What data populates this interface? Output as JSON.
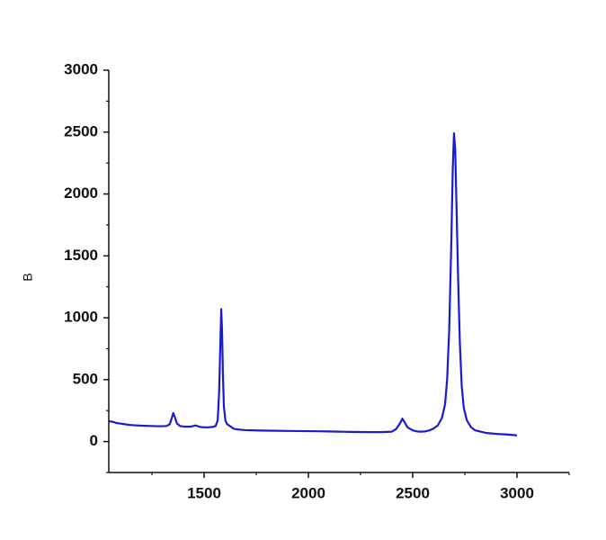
{
  "chart_data": {
    "type": "line",
    "y_label": "B",
    "color": "#1a1ad2",
    "xlim": [
      1043,
      3250
    ],
    "ylim": [
      -250,
      3000
    ],
    "xticks": [
      1500,
      2000,
      2500,
      3000
    ],
    "yticks": [
      0,
      500,
      1000,
      1500,
      2000,
      2500,
      3000
    ],
    "x_minor_ticks": [
      1250,
      1750,
      2250,
      2750,
      3250
    ],
    "y_minor_ticks": [
      -250,
      250,
      750,
      1250,
      1750,
      2250,
      2750
    ],
    "x": [
      1045,
      1060,
      1080,
      1100,
      1120,
      1140,
      1160,
      1180,
      1200,
      1220,
      1240,
      1260,
      1280,
      1300,
      1320,
      1335,
      1345,
      1352,
      1360,
      1370,
      1385,
      1400,
      1420,
      1440,
      1460,
      1480,
      1500,
      1520,
      1540,
      1555,
      1565,
      1572,
      1578,
      1582,
      1586,
      1590,
      1595,
      1602,
      1610,
      1620,
      1640,
      1660,
      1680,
      1700,
      1750,
      1800,
      1850,
      1900,
      1950,
      2000,
      2050,
      2100,
      2150,
      2200,
      2250,
      2300,
      2350,
      2400,
      2420,
      2440,
      2450,
      2460,
      2475,
      2500,
      2520,
      2540,
      2560,
      2580,
      2600,
      2620,
      2640,
      2655,
      2665,
      2675,
      2685,
      2692,
      2698,
      2704,
      2710,
      2718,
      2726,
      2735,
      2745,
      2760,
      2780,
      2800,
      2850,
      2900,
      2950,
      3000
    ],
    "values": [
      165,
      160,
      150,
      145,
      140,
      135,
      132,
      130,
      128,
      127,
      126,
      125,
      124,
      124,
      126,
      140,
      190,
      230,
      195,
      145,
      125,
      122,
      120,
      122,
      130,
      118,
      115,
      115,
      118,
      125,
      170,
      400,
      800,
      1070,
      900,
      550,
      280,
      170,
      140,
      130,
      105,
      98,
      95,
      92,
      90,
      88,
      87,
      86,
      85,
      84,
      83,
      82,
      80,
      78,
      77,
      76,
      76,
      80,
      100,
      150,
      185,
      160,
      115,
      90,
      82,
      80,
      82,
      90,
      105,
      130,
      190,
      300,
      500,
      900,
      1600,
      2200,
      2490,
      2350,
      1900,
      1300,
      800,
      450,
      270,
      170,
      115,
      90,
      70,
      62,
      57,
      50
    ]
  }
}
